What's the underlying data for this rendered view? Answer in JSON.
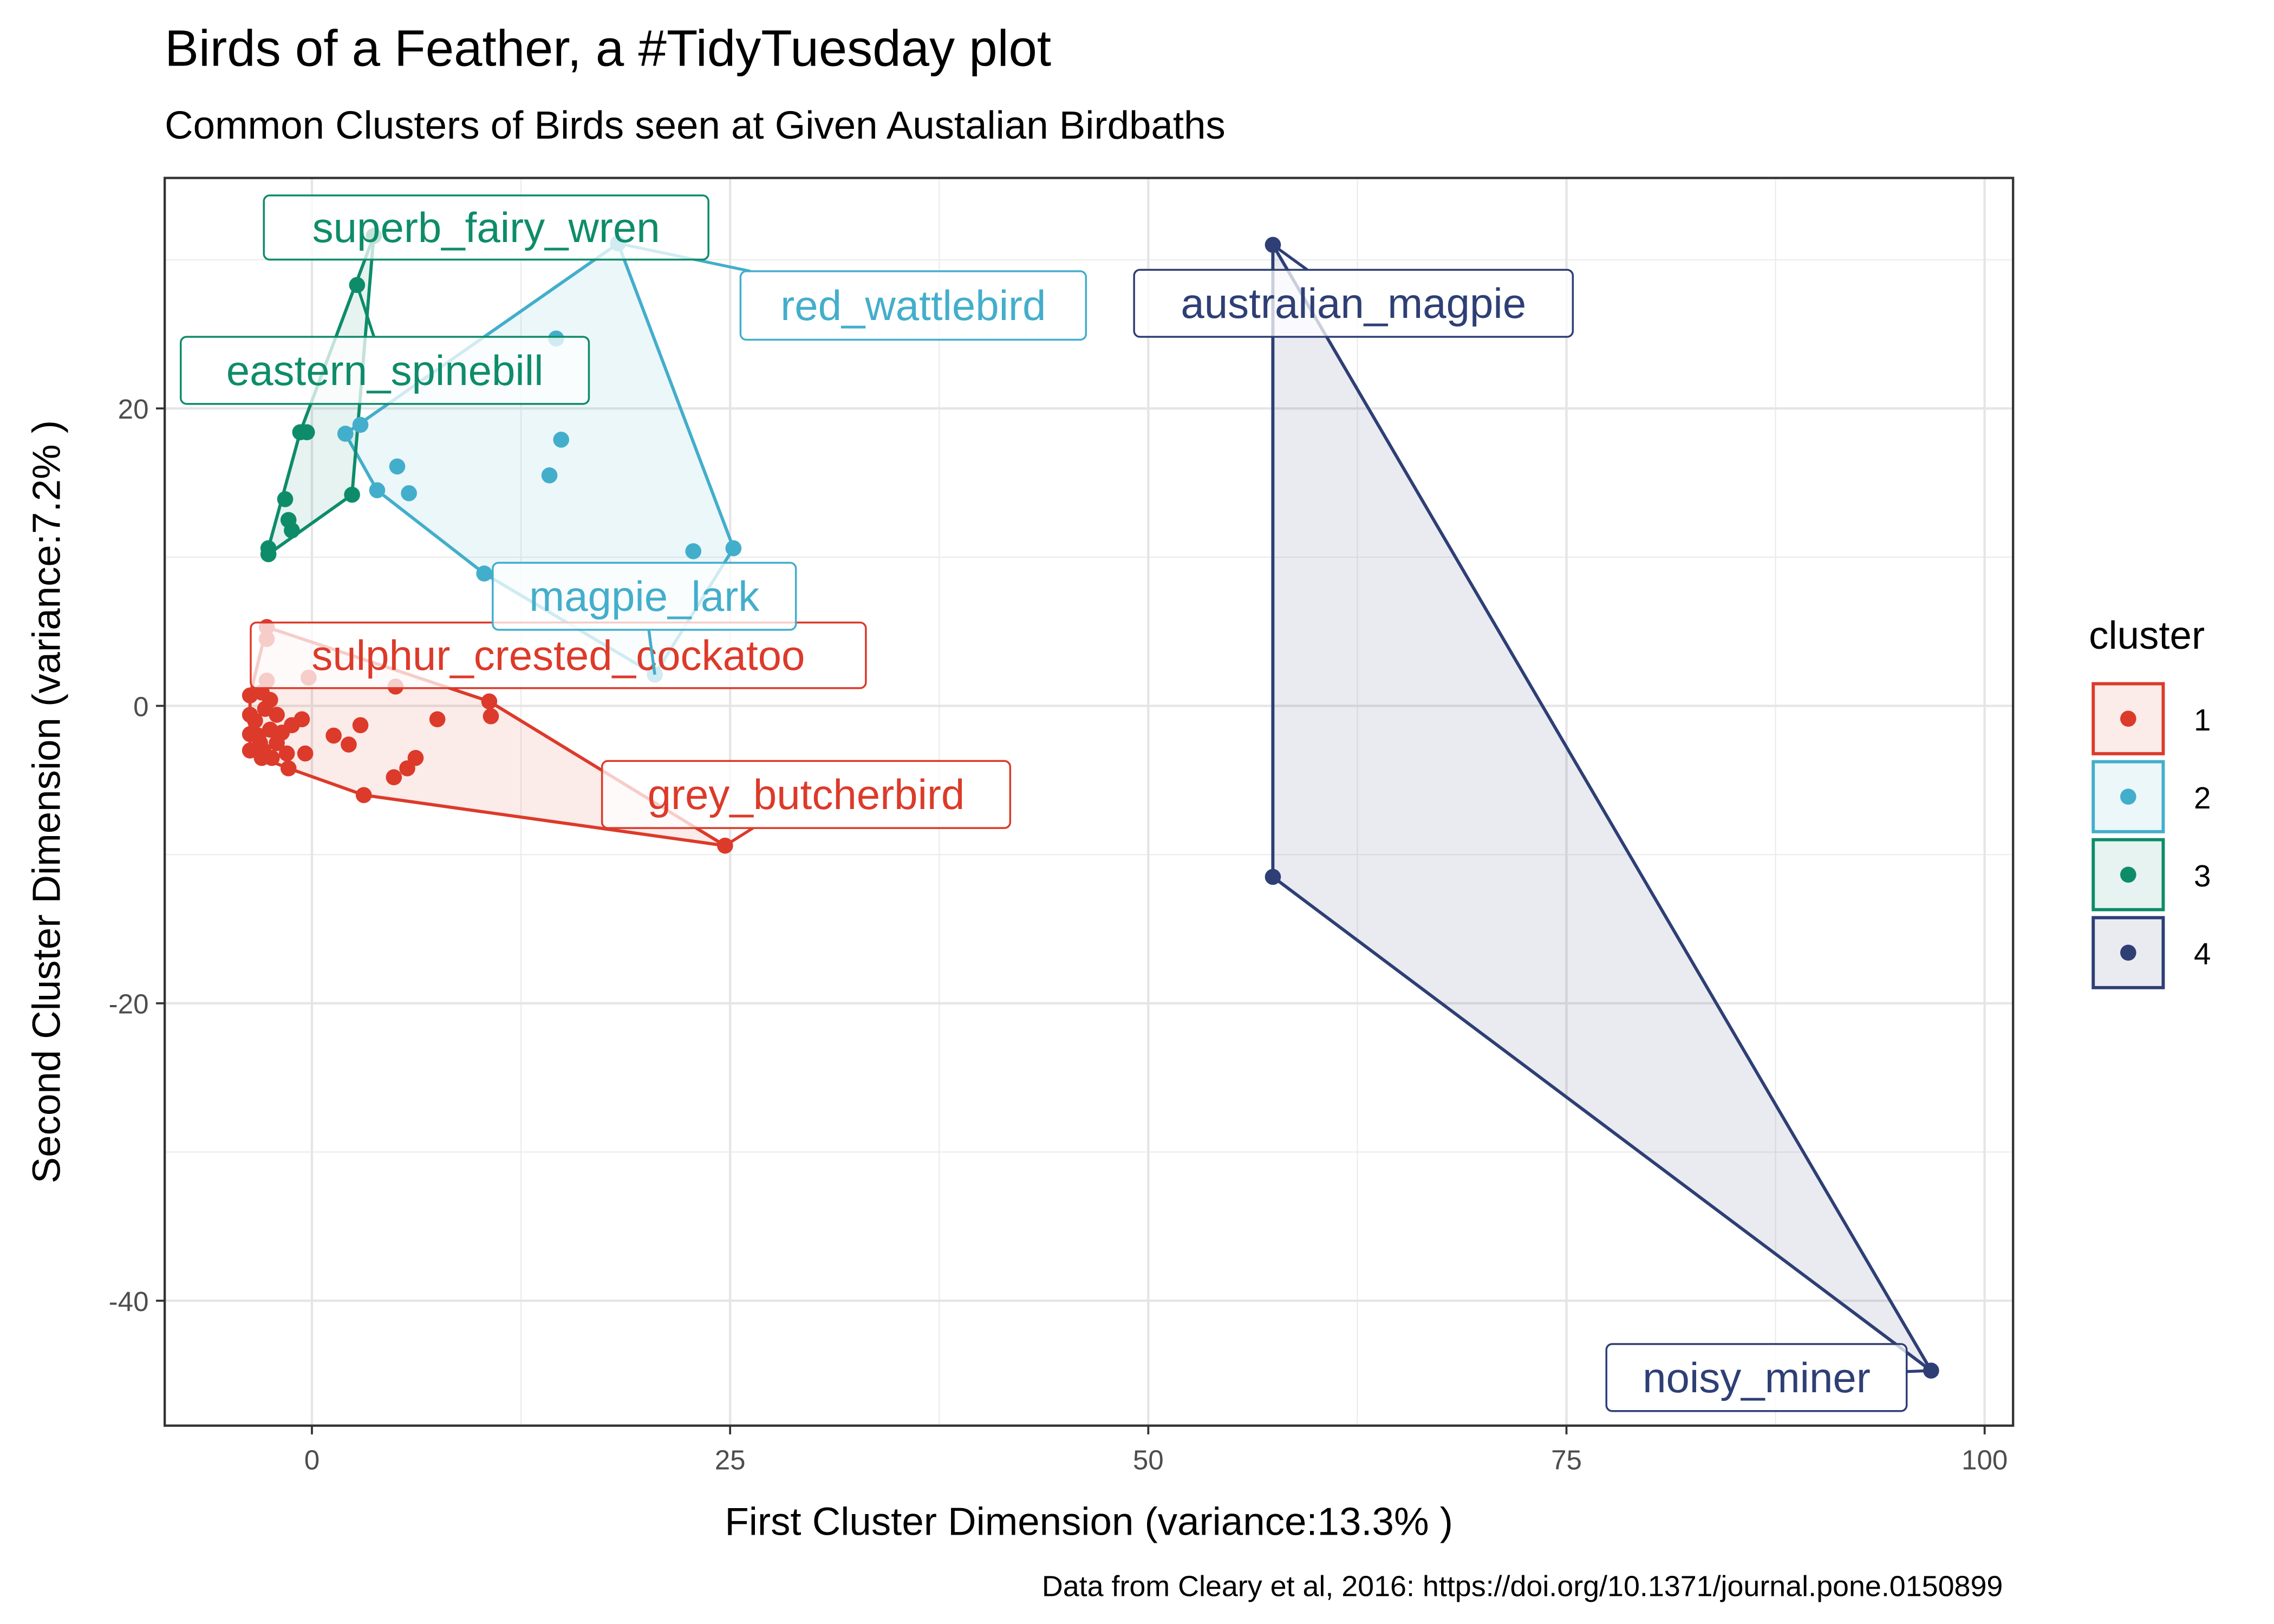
{
  "chart_data": {
    "type": "scatter",
    "title": "Birds of a Feather, a #TidyTuesday plot",
    "subtitle": "Common Clusters of Birds seen at Given Austalian Birdbaths",
    "caption": "Data from Cleary et al, 2016: https://doi.org/10.1371/journal.pone.0150899",
    "xlabel": "First Cluster Dimension (variance:13.3% )",
    "ylabel": "Second Cluster Dimension (variance:7.2% )",
    "xlim": [
      -8.8,
      101.7
    ],
    "ylim": [
      -48.4,
      35.5
    ],
    "x_ticks": [
      0,
      25,
      50,
      75,
      100
    ],
    "x_tick_labels": [
      "0",
      "25",
      "50",
      "75",
      "100"
    ],
    "y_ticks": [
      -40,
      -20,
      0,
      20
    ],
    "y_tick_labels": [
      "-40",
      "-20",
      "0",
      "20"
    ],
    "x_minor_ticks": [
      12.5,
      37.5,
      62.5,
      87.5
    ],
    "y_minor_ticks": [
      -30,
      -10,
      10,
      30
    ],
    "grid": true,
    "legend": {
      "title": "cluster",
      "position": "right",
      "entries": [
        "1",
        "2",
        "3",
        "4"
      ]
    },
    "series": [
      {
        "name": "1",
        "color": "#dc3a2a",
        "points": [
          [
            -2.7,
            5.3
          ],
          [
            -2.7,
            4.5
          ],
          [
            -2.7,
            1.7
          ],
          [
            -0.2,
            1.9
          ],
          [
            5.0,
            1.3
          ],
          [
            10.6,
            0.3
          ],
          [
            10.7,
            -0.7
          ],
          [
            7.5,
            -0.9
          ],
          [
            2.9,
            -1.3
          ],
          [
            1.3,
            -2.0
          ],
          [
            2.2,
            -2.6
          ],
          [
            -0.6,
            -0.9
          ],
          [
            -1.2,
            -1.3
          ],
          [
            -0.4,
            -3.2
          ],
          [
            -1.5,
            -3.2
          ],
          [
            -1.4,
            -4.2
          ],
          [
            -2.4,
            -3.5
          ],
          [
            -3.1,
            -2.5
          ],
          [
            -3.7,
            0.7
          ],
          [
            -3.7,
            -0.6
          ],
          [
            -3.7,
            -1.9
          ],
          [
            -3.7,
            -3.0
          ],
          [
            -3.0,
            0.9
          ],
          [
            -2.5,
            0.4
          ],
          [
            -2.1,
            -0.6
          ],
          [
            -2.5,
            -1.6
          ],
          [
            -2.1,
            -2.5
          ],
          [
            -3.0,
            -3.5
          ],
          [
            6.2,
            -3.5
          ],
          [
            5.7,
            -4.2
          ],
          [
            4.9,
            -4.8
          ],
          [
            3.1,
            -6.0
          ],
          [
            24.7,
            -9.4
          ],
          [
            -3.4,
            -1.0
          ],
          [
            -3.2,
            -2.0
          ],
          [
            -2.8,
            -0.2
          ],
          [
            -1.8,
            -1.8
          ],
          [
            -2.9,
            -3.0
          ]
        ],
        "labels": [
          {
            "text": "sulphur_crested_cockatoo",
            "x": -2.7,
            "y": 5.3
          },
          {
            "text": "grey_butcherbird",
            "x": 24.7,
            "y": -9.4
          }
        ]
      },
      {
        "name": "2",
        "color": "#43aecb",
        "points": [
          [
            18.3,
            31.1
          ],
          [
            14.6,
            24.7
          ],
          [
            14.9,
            17.9
          ],
          [
            14.2,
            15.5
          ],
          [
            5.1,
            16.1
          ],
          [
            5.8,
            14.3
          ],
          [
            3.9,
            14.5
          ],
          [
            2.0,
            18.3
          ],
          [
            2.9,
            18.9
          ],
          [
            10.3,
            8.9
          ],
          [
            25.2,
            10.6
          ],
          [
            22.8,
            10.4
          ],
          [
            20.5,
            2.1
          ]
        ],
        "labels": [
          {
            "text": "red_wattlebird",
            "x": 18.3,
            "y": 31.1
          },
          {
            "text": "magpie_lark",
            "x": 20.5,
            "y": 2.1
          }
        ]
      },
      {
        "name": "3",
        "color": "#0e8c6a",
        "points": [
          [
            3.7,
            31.6
          ],
          [
            2.7,
            28.3
          ],
          [
            -0.7,
            18.4
          ],
          [
            -0.3,
            18.4
          ],
          [
            2.4,
            14.2
          ],
          [
            -1.6,
            13.9
          ],
          [
            -1.4,
            12.5
          ],
          [
            -1.2,
            11.8
          ],
          [
            -2.6,
            10.6
          ],
          [
            -2.6,
            10.2
          ]
        ],
        "labels": [
          {
            "text": "superb_fairy_wren",
            "x": 3.7,
            "y": 31.6
          },
          {
            "text": "eastern_spinebill",
            "x": 2.7,
            "y": 28.3
          }
        ]
      },
      {
        "name": "4",
        "color": "#2e3f75",
        "points": [
          [
            57.45,
            31.0
          ],
          [
            57.45,
            -11.5
          ],
          [
            96.8,
            -44.7
          ]
        ],
        "labels": [
          {
            "text": "australian_magpie",
            "x": 57.45,
            "y": 31.0
          },
          {
            "text": "noisy_miner",
            "x": 96.8,
            "y": -44.7
          }
        ]
      }
    ]
  }
}
